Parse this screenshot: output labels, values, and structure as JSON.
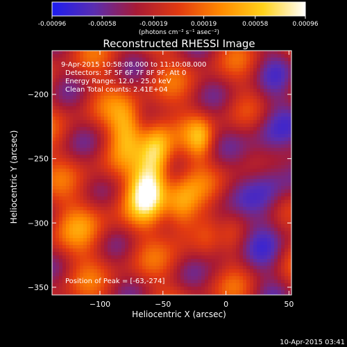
{
  "colorbar": {
    "ticks": [
      "-0.00096",
      "-0.00058",
      "-0.00019",
      "0.00019",
      "0.00058",
      "0.00096"
    ],
    "values": [
      -0.00096,
      -0.00058,
      -0.00019,
      0.00019,
      0.00058,
      0.00096
    ],
    "range": [
      -0.00096,
      0.00096
    ],
    "units_label": "(photons cm⁻² s⁻¹ asec⁻²)",
    "colormap": [
      "#1d1df0",
      "#5a2db0",
      "#a81a35",
      "#e23a10",
      "#ff8a00",
      "#ffd21a",
      "#ffffff"
    ]
  },
  "chart_data": {
    "type": "heatmap",
    "title": "Reconstructed RHESSI Image",
    "xlabel": "Heliocentric X (arcsec)",
    "ylabel": "Heliocentric Y (arcsec)",
    "xlim": [
      -138,
      52
    ],
    "ylim": [
      -356,
      -166
    ],
    "xticks": [
      -100,
      -50,
      0,
      50
    ],
    "yticks": [
      -200,
      -250,
      -300,
      -350
    ],
    "xtick_labels": [
      "−100",
      "−50",
      "0",
      "50"
    ],
    "ytick_labels": [
      "−200",
      "−250",
      "−300",
      "−350"
    ],
    "peak": [
      -63,
      -274
    ],
    "annotations": {
      "time": "9-Apr-2015 10:58:08.000 to 11:10:08.000",
      "detectors": "Detectors: 3F 5F 6F 7F 8F 9F, Att 0",
      "energy": "Energy Range: 12.0 - 25.0 keV",
      "clean": "Clean    Total counts: 2.41E+04",
      "peak_text": "Position of Peak = [-63,-274]"
    }
  },
  "footer": {
    "timestamp": "10-Apr-2015 03:41"
  }
}
